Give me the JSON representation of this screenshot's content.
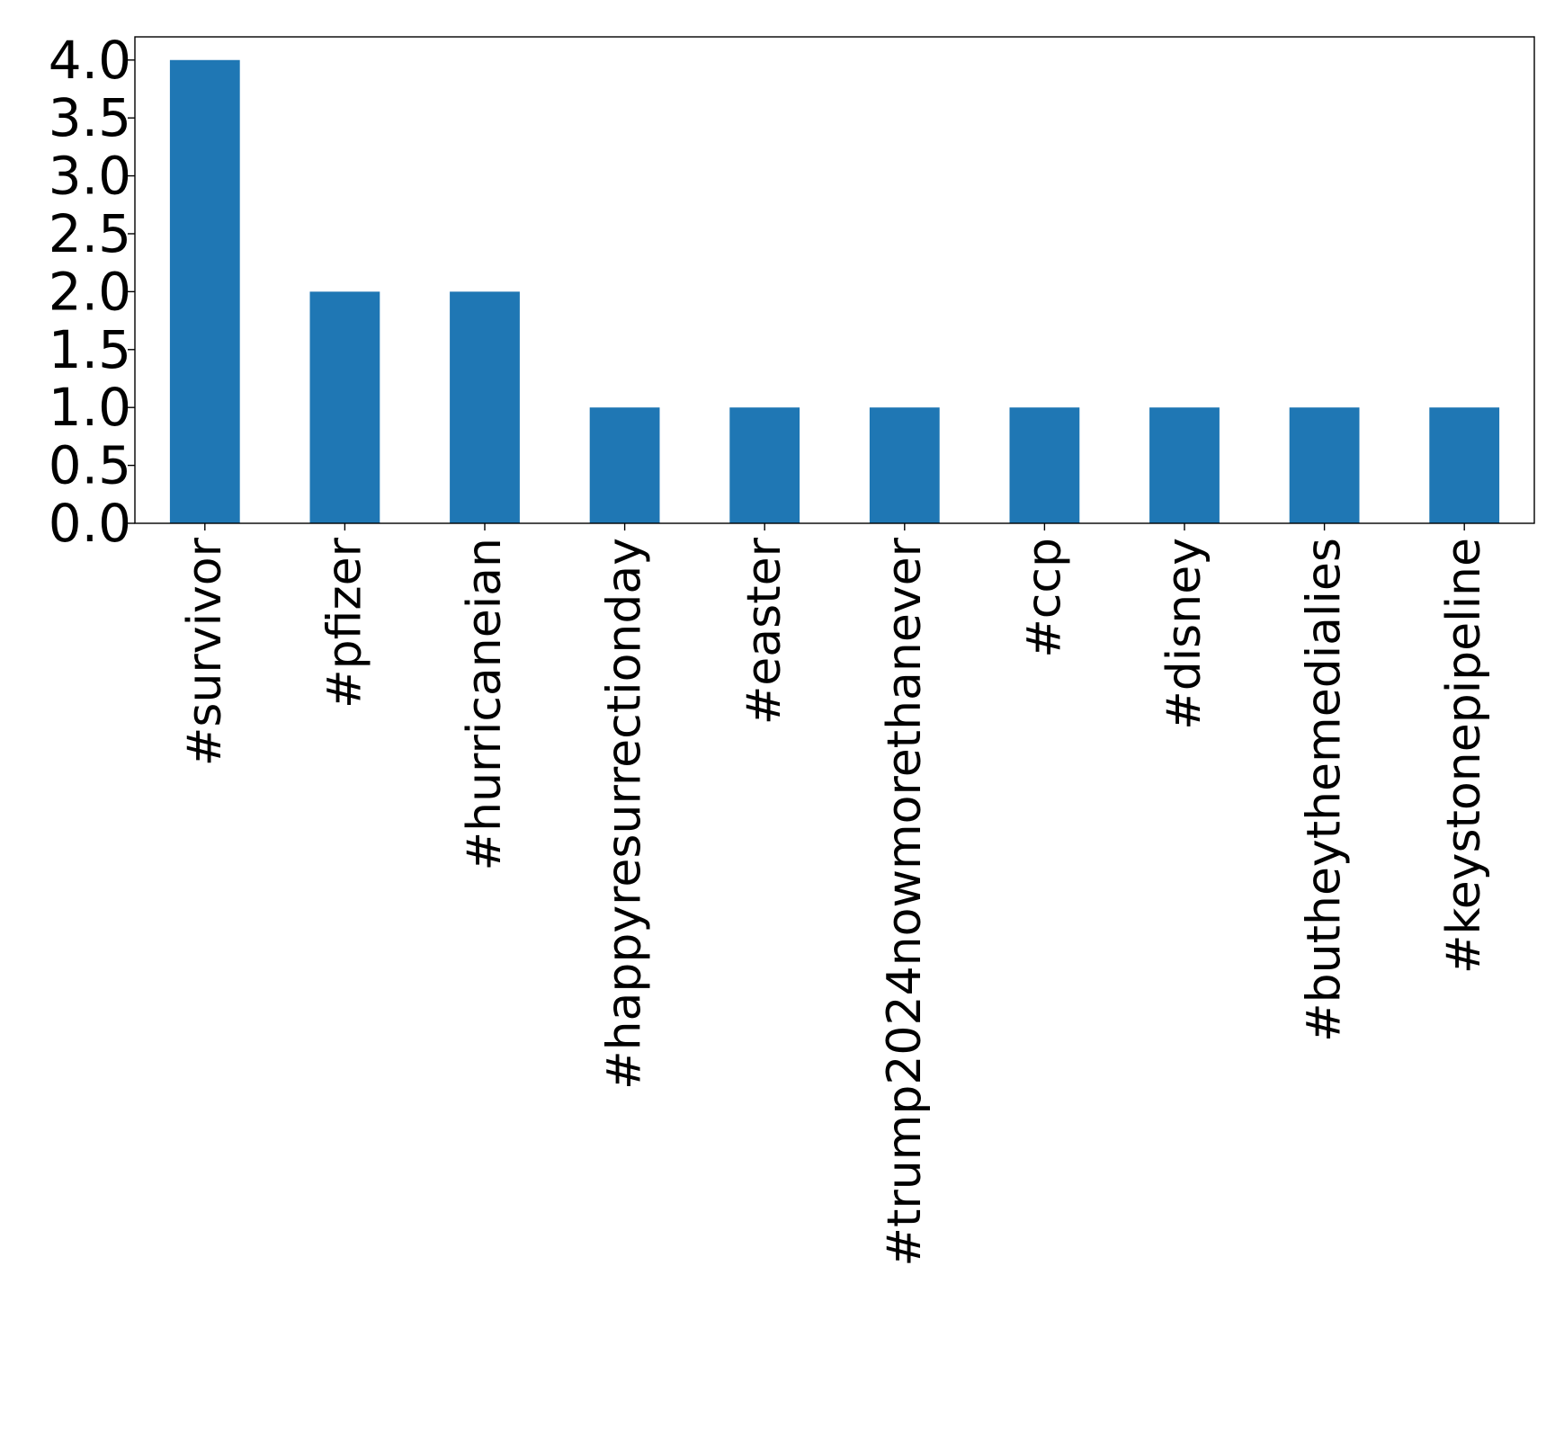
{
  "chart_data": {
    "type": "bar",
    "categories": [
      "#survivor",
      "#pfizer",
      "#hurricaneian",
      "#happyresurrectionday",
      "#easter",
      "#trump2024nowmorethanever",
      "#ccp",
      "#disney",
      "#butheythemedialies",
      "#keystonepipeline"
    ],
    "values": [
      4,
      2,
      2,
      1,
      1,
      1,
      1,
      1,
      1,
      1
    ],
    "title": "",
    "xlabel": "",
    "ylabel": "",
    "ylim": [
      0,
      4.2
    ],
    "yticks": [
      "0.0",
      "0.5",
      "1.0",
      "1.5",
      "2.0",
      "2.5",
      "3.0",
      "3.5",
      "4.0"
    ],
    "grid": false,
    "bar_color": "#1f77b4"
  }
}
